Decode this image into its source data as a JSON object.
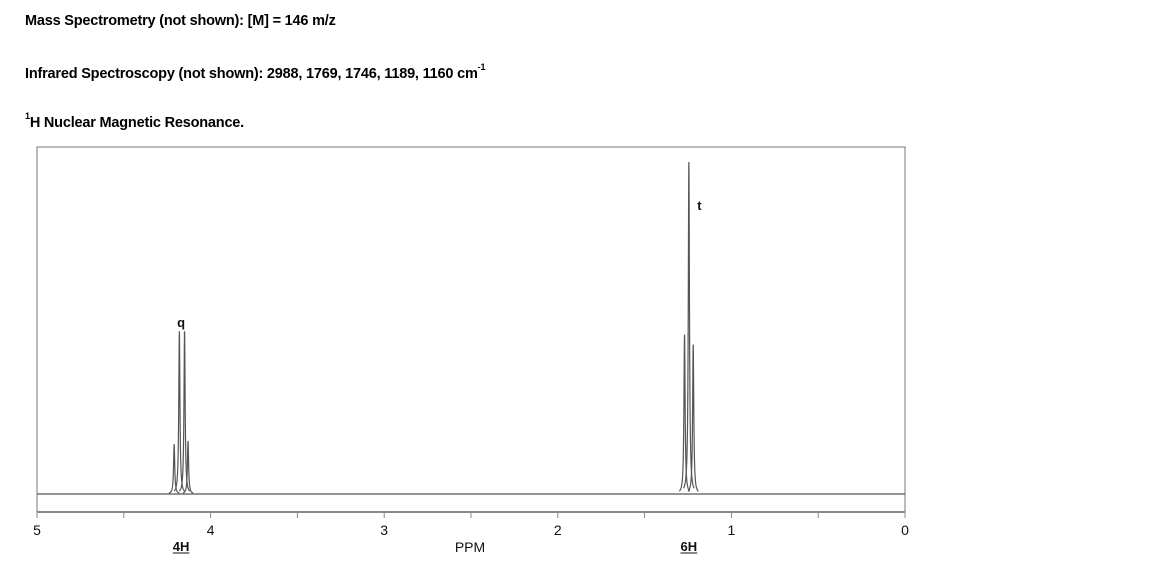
{
  "header": {
    "mass_spec": "Mass Spectrometry (not shown):  [M] = 146 m/z",
    "ir_prefix": "Infrared Spectroscopy (not shown):  2988, 1769, 1746, 1189, 1160 cm",
    "ir_superscript": "-1",
    "nmr_superscript": "1",
    "nmr_title": "H Nuclear Magnetic Resonance."
  },
  "chart_data": {
    "type": "line",
    "title": "",
    "xlabel": "PPM",
    "ylabel": "",
    "xlim": [
      5,
      0
    ],
    "x_reversed": true,
    "ylim": [
      0,
      1.05
    ],
    "grid": false,
    "x_ticks_major": [
      5,
      4,
      3,
      2,
      1,
      0
    ],
    "x_tick_labels": [
      "5",
      "4",
      "3",
      "2",
      "1",
      "0"
    ],
    "x_ticks_minor": [
      4.5,
      3.5,
      2.5,
      1.5,
      0.5
    ],
    "line_color": "#555555",
    "peaks": [
      {
        "ppm": 4.21,
        "intensity": 0.15
      },
      {
        "ppm": 4.18,
        "intensity": 0.49
      },
      {
        "ppm": 4.15,
        "intensity": 0.49
      },
      {
        "ppm": 4.13,
        "intensity": 0.16
      },
      {
        "ppm": 1.27,
        "intensity": 0.48
      },
      {
        "ppm": 1.245,
        "intensity": 1.0
      },
      {
        "ppm": 1.22,
        "intensity": 0.45
      }
    ],
    "annotations": [
      {
        "text": "q",
        "ppm": 4.17,
        "kind": "multiplicity"
      },
      {
        "text": "t",
        "ppm": 1.23,
        "kind": "multiplicity"
      },
      {
        "text": "4H",
        "ppm": 4.17,
        "kind": "integration"
      },
      {
        "text": "6H",
        "ppm": 1.245,
        "kind": "integration"
      }
    ]
  }
}
